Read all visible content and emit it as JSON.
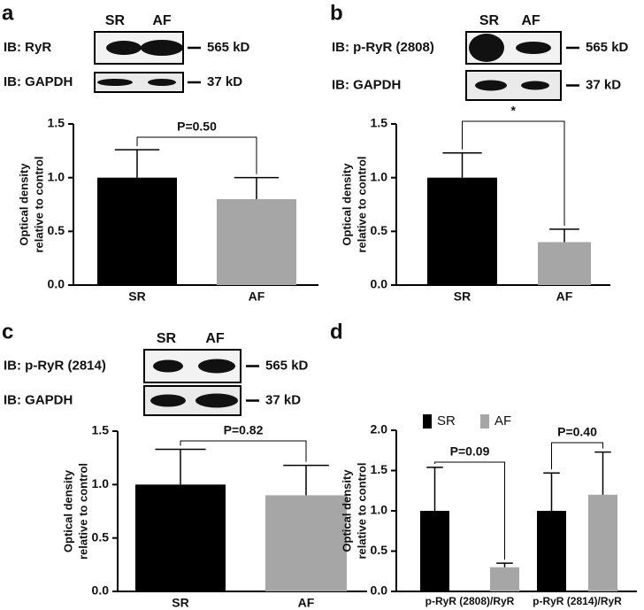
{
  "letters": [
    "a",
    "b",
    "c",
    "d"
  ],
  "blots": [
    {
      "lanes": [
        "SR",
        "AF"
      ],
      "rows": [
        {
          "label": "IB: RyR",
          "marker": "565 kD"
        },
        {
          "label": "IB: GAPDH",
          "marker": "37 kD"
        }
      ]
    },
    {
      "lanes": [
        "SR",
        "AF"
      ],
      "rows": [
        {
          "label": "IB: p-RyR (2808)",
          "marker": "565 kD"
        },
        {
          "label": "IB: GAPDH",
          "marker": "37 kD"
        }
      ]
    },
    {
      "lanes": [
        "SR",
        "AF"
      ],
      "rows": [
        {
          "label": "IB: p-RyR (2814)",
          "marker": "565 kD"
        },
        {
          "label": "IB: GAPDH",
          "marker": "37 kD"
        }
      ]
    }
  ],
  "chart_data": [
    {
      "type": "bar",
      "ylabel": [
        "Optical density",
        "relative to control"
      ],
      "categories": [
        "SR",
        "AF"
      ],
      "values": [
        1.0,
        0.8
      ],
      "errors": [
        0.26,
        0.2
      ],
      "colors": [
        "#000000",
        "#a6a6a6"
      ],
      "ylim": [
        0,
        1.5
      ],
      "yticks": [
        {
          "value": 0,
          "label": "0.0"
        },
        {
          "value": 0.5,
          "label": "0.5"
        },
        {
          "value": 1,
          "label": "1.0"
        },
        {
          "value": 1.5,
          "label": "1.5"
        }
      ],
      "annotations": [
        "P=0.50"
      ]
    },
    {
      "type": "bar",
      "ylabel": [
        "Optical density",
        "relative to control"
      ],
      "categories": [
        "SR",
        "AF"
      ],
      "values": [
        1.0,
        0.4
      ],
      "errors": [
        0.23,
        0.12
      ],
      "colors": [
        "#000000",
        "#a6a6a6"
      ],
      "ylim": [
        0,
        1.5
      ],
      "yticks": [
        {
          "value": 0,
          "label": "0.0"
        },
        {
          "value": 0.5,
          "label": "0.5"
        },
        {
          "value": 1,
          "label": "1.0"
        },
        {
          "value": 1.5,
          "label": "1.5"
        }
      ],
      "annotations": [
        "*"
      ]
    },
    {
      "type": "bar",
      "ylabel": [
        "Optical density",
        "relative to control"
      ],
      "categories": [
        "SR",
        "AF"
      ],
      "values": [
        1.0,
        0.9
      ],
      "errors": [
        0.33,
        0.28
      ],
      "colors": [
        "#000000",
        "#a6a6a6"
      ],
      "ylim": [
        0,
        1.5
      ],
      "yticks": [
        {
          "value": 0,
          "label": "0.0"
        },
        {
          "value": 0.5,
          "label": "0.5"
        },
        {
          "value": 1,
          "label": "1.0"
        },
        {
          "value": 1.5,
          "label": "1.5"
        }
      ],
      "annotations": [
        "P=0.82"
      ]
    },
    {
      "type": "grouped_bar",
      "ylabel": [
        "Optical density",
        "relative to control"
      ],
      "categories": [
        "p-RyR (2808)/RyR",
        "p-RyR (2814)/RyR"
      ],
      "series": [
        {
          "name": "SR",
          "color": "#000000",
          "values": [
            1.0,
            1.0
          ],
          "errors": [
            0.54,
            0.47
          ]
        },
        {
          "name": "AF",
          "color": "#a6a6a6",
          "values": [
            0.3,
            1.2
          ],
          "errors": [
            0.05,
            0.53
          ]
        }
      ],
      "ylim": [
        0,
        2
      ],
      "yticks": [
        {
          "value": 0,
          "label": "0.0"
        },
        {
          "value": 0.5,
          "label": "0.5"
        },
        {
          "value": 1,
          "label": "1.0"
        },
        {
          "value": 1.5,
          "label": "1.5"
        },
        {
          "value": 2,
          "label": "2.0"
        }
      ],
      "legend": "upper left",
      "annotations": [
        "P=0.09",
        "P=0.40"
      ]
    }
  ]
}
